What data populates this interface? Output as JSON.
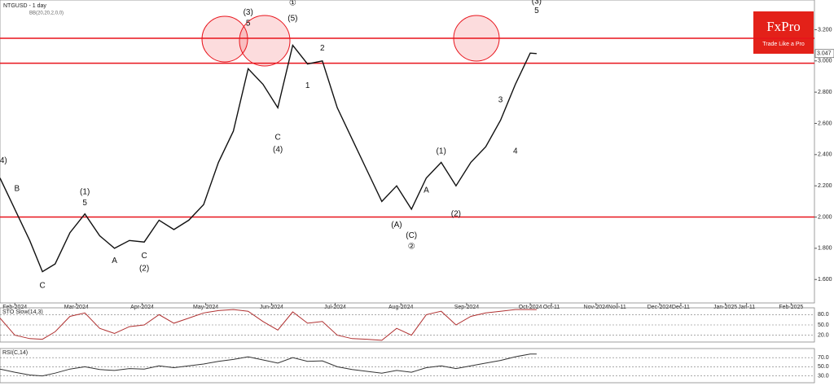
{
  "header": {
    "title": "NTGUSD - 1 day",
    "indicator": "BB(20,20,2,0,0)"
  },
  "logo": {
    "name": "FxPro",
    "tagline": "Trade Like a Pro"
  },
  "chart_data": [
    {
      "type": "line",
      "panel": "main",
      "x": [
        "2024-01-25",
        "2024-02-01",
        "2024-02-08",
        "2024-02-14",
        "2024-02-20",
        "2024-02-27",
        "2024-03-05",
        "2024-03-12",
        "2024-03-19",
        "2024-03-26",
        "2024-04-02",
        "2024-04-09",
        "2024-04-16",
        "2024-04-23",
        "2024-04-30",
        "2024-05-07",
        "2024-05-14",
        "2024-05-21",
        "2024-05-28",
        "2024-06-04",
        "2024-06-11",
        "2024-06-18",
        "2024-06-25",
        "2024-07-02",
        "2024-07-09",
        "2024-07-16",
        "2024-07-23",
        "2024-07-30",
        "2024-08-06",
        "2024-08-13",
        "2024-08-20",
        "2024-08-27",
        "2024-09-03",
        "2024-09-10",
        "2024-09-17",
        "2024-09-24",
        "2024-10-01",
        "2024-10-04"
      ],
      "series": [
        {
          "name": "NTGUSD",
          "color": "#111111",
          "values": [
            2.25,
            2.05,
            1.85,
            1.65,
            1.7,
            1.9,
            2.02,
            1.88,
            1.8,
            1.85,
            1.84,
            1.98,
            1.92,
            1.98,
            2.08,
            2.35,
            2.55,
            2.95,
            2.85,
            2.7,
            3.1,
            2.98,
            3.0,
            2.7,
            2.5,
            2.3,
            2.1,
            2.2,
            2.05,
            2.25,
            2.35,
            2.2,
            2.35,
            2.45,
            2.62,
            2.85,
            3.05,
            3.047
          ]
        }
      ],
      "levels": [
        3.145,
        2.985,
        2.0
      ],
      "level_color": "#e8141c",
      "xlim": [
        "2024-01-25",
        "2025-02-12"
      ],
      "xticks": [
        {
          "value": "2024-02-01",
          "label": "Feb-2024"
        },
        {
          "value": "2024-03-01",
          "label": "Mar-2024"
        },
        {
          "value": "2024-04-01",
          "label": "Apr-2024"
        },
        {
          "value": "2024-05-01",
          "label": "May-2024"
        },
        {
          "value": "2024-06-01",
          "label": "Jun-2024"
        },
        {
          "value": "2024-07-01",
          "label": "Jul-2024"
        },
        {
          "value": "2024-08-01",
          "label": "Aug-2024"
        },
        {
          "value": "2024-09-01",
          "label": "Sep-2024"
        },
        {
          "value": "2024-10-01",
          "label": "Oct-2024"
        },
        {
          "value": "2024-10-11",
          "label": "Oct-11"
        },
        {
          "value": "2024-11-01",
          "label": "Nov-2024"
        },
        {
          "value": "2024-11-11",
          "label": "Nov-11"
        },
        {
          "value": "2024-12-01",
          "label": "Dec-2024"
        },
        {
          "value": "2024-12-11",
          "label": "Dec-11"
        },
        {
          "value": "2025-01-01",
          "label": "Jan-2025"
        },
        {
          "value": "2025-01-11",
          "label": "Jan-11"
        },
        {
          "value": "2025-02-01",
          "label": "Feb-2025"
        }
      ],
      "ylim": [
        1.45,
        3.39
      ],
      "yticks": [
        {
          "value": 1.6,
          "label": "1.600"
        },
        {
          "value": 1.8,
          "label": "1.800"
        },
        {
          "value": 2.0,
          "label": "2.000"
        },
        {
          "value": 2.2,
          "label": "2.200"
        },
        {
          "value": 2.4,
          "label": "2.400"
        },
        {
          "value": 2.6,
          "label": "2.600"
        },
        {
          "value": 2.8,
          "label": "2.800"
        },
        {
          "value": 3.0,
          "label": "3.000"
        },
        {
          "value": 3.2,
          "label": "3.200"
        }
      ],
      "annotations": [
        {
          "text": "(4)",
          "x": "2024-01-26",
          "y": 2.36
        },
        {
          "text": "B",
          "x": "2024-02-02",
          "y": 2.18
        },
        {
          "text": "C",
          "x": "2024-02-14",
          "y": 1.56
        },
        {
          "text": "(1)",
          "x": "2024-03-05",
          "y": 2.16
        },
        {
          "text": "5",
          "x": "2024-03-05",
          "y": 2.09
        },
        {
          "text": "A",
          "x": "2024-03-19",
          "y": 1.72
        },
        {
          "text": "C",
          "x": "2024-04-02",
          "y": 1.75
        },
        {
          "text": "(2)",
          "x": "2024-04-02",
          "y": 1.67
        },
        {
          "text": "(3)",
          "x": "2024-05-21",
          "y": 3.31
        },
        {
          "text": "5",
          "x": "2024-05-21",
          "y": 3.24
        },
        {
          "text": "(4)",
          "x": "2024-06-04",
          "y": 2.43
        },
        {
          "text": "C",
          "x": "2024-06-04",
          "y": 2.51
        },
        {
          "text": "①",
          "x": "2024-06-11",
          "y": 3.37
        },
        {
          "text": "(5)",
          "x": "2024-06-11",
          "y": 3.27
        },
        {
          "text": "2",
          "x": "2024-06-25",
          "y": 3.08
        },
        {
          "text": "1",
          "x": "2024-06-18",
          "y": 2.84
        },
        {
          "text": "(A)",
          "x": "2024-07-30",
          "y": 1.95
        },
        {
          "text": "(C)",
          "x": "2024-08-06",
          "y": 1.88
        },
        {
          "text": "②",
          "x": "2024-08-06",
          "y": 1.81
        },
        {
          "text": "(1)",
          "x": "2024-08-20",
          "y": 2.42
        },
        {
          "text": "A",
          "x": "2024-08-13",
          "y": 2.17
        },
        {
          "text": "(2)",
          "x": "2024-08-27",
          "y": 2.02
        },
        {
          "text": "3",
          "x": "2024-09-17",
          "y": 2.75
        },
        {
          "text": "4",
          "x": "2024-09-24",
          "y": 2.42
        },
        {
          "text": "(3)",
          "x": "2024-10-04",
          "y": 3.38
        },
        {
          "text": "5",
          "x": "2024-10-04",
          "y": 3.32
        }
      ]
    },
    {
      "type": "line",
      "panel": "sto",
      "title": "STO Slow(14,3)",
      "x": [
        "2024-01-25",
        "2024-02-01",
        "2024-02-08",
        "2024-02-14",
        "2024-02-20",
        "2024-02-27",
        "2024-03-05",
        "2024-03-12",
        "2024-03-19",
        "2024-03-26",
        "2024-04-02",
        "2024-04-09",
        "2024-04-16",
        "2024-04-23",
        "2024-04-30",
        "2024-05-07",
        "2024-05-14",
        "2024-05-21",
        "2024-05-28",
        "2024-06-04",
        "2024-06-11",
        "2024-06-18",
        "2024-06-25",
        "2024-07-02",
        "2024-07-09",
        "2024-07-16",
        "2024-07-23",
        "2024-07-30",
        "2024-08-06",
        "2024-08-13",
        "2024-08-20",
        "2024-08-27",
        "2024-09-03",
        "2024-09-10",
        "2024-09-17",
        "2024-09-24",
        "2024-10-01",
        "2024-10-04"
      ],
      "series": [
        {
          "name": "STO",
          "color": "#b03030",
          "values": [
            70,
            20,
            10,
            8,
            30,
            75,
            85,
            40,
            25,
            45,
            50,
            80,
            55,
            70,
            85,
            92,
            95,
            90,
            60,
            35,
            88,
            55,
            60,
            20,
            10,
            8,
            5,
            40,
            20,
            80,
            90,
            50,
            75,
            85,
            90,
            95,
            95,
            94.7
          ]
        }
      ],
      "xlim": [
        "2024-01-25",
        "2025-02-12"
      ],
      "ylim": [
        0,
        100
      ],
      "yticks": [
        {
          "value": 20,
          "label": "20.0"
        },
        {
          "value": 50,
          "label": "50.0"
        },
        {
          "value": 80,
          "label": "80.0"
        }
      ]
    },
    {
      "type": "line",
      "panel": "rsi",
      "title": "RSI(C,14)",
      "x": [
        "2024-01-25",
        "2024-02-01",
        "2024-02-08",
        "2024-02-14",
        "2024-02-20",
        "2024-02-27",
        "2024-03-05",
        "2024-03-12",
        "2024-03-19",
        "2024-03-26",
        "2024-04-02",
        "2024-04-09",
        "2024-04-16",
        "2024-04-23",
        "2024-04-30",
        "2024-05-07",
        "2024-05-14",
        "2024-05-21",
        "2024-05-28",
        "2024-06-04",
        "2024-06-11",
        "2024-06-18",
        "2024-06-25",
        "2024-07-02",
        "2024-07-09",
        "2024-07-16",
        "2024-07-23",
        "2024-07-30",
        "2024-08-06",
        "2024-08-13",
        "2024-08-20",
        "2024-08-27",
        "2024-09-03",
        "2024-09-10",
        "2024-09-17",
        "2024-09-24",
        "2024-10-01",
        "2024-10-04"
      ],
      "series": [
        {
          "name": "RSI",
          "color": "#333333",
          "values": [
            45,
            38,
            32,
            30,
            36,
            45,
            50,
            44,
            42,
            46,
            45,
            52,
            48,
            52,
            56,
            62,
            66,
            72,
            65,
            58,
            70,
            62,
            63,
            50,
            44,
            40,
            36,
            42,
            38,
            48,
            52,
            46,
            52,
            58,
            64,
            72,
            78,
            77.9
          ]
        }
      ],
      "xlim": [
        "2024-01-25",
        "2025-02-12"
      ],
      "ylim": [
        15,
        90
      ],
      "yticks": [
        {
          "value": 30,
          "label": "30.0"
        },
        {
          "value": 50,
          "label": "50.0"
        },
        {
          "value": 70,
          "label": "70.0"
        }
      ]
    }
  ]
}
